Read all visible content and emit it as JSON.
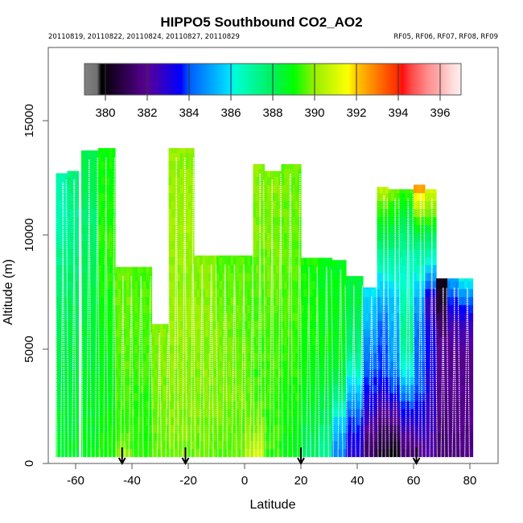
{
  "chart_data": {
    "type": "heatmap",
    "title": "HIPPO5 Southbound CO2_AO2",
    "subtitle_left": "20110819, 20110822, 20110824, 20110827, 20110829",
    "subtitle_right": "RF05, RF06, RF07, RF08, RF09",
    "xlabel": "Latitude",
    "ylabel": "Altitude (m)",
    "xlim": [
      -70,
      90
    ],
    "ylim": [
      0,
      18000
    ],
    "xticks": [
      -60,
      -40,
      -20,
      0,
      20,
      40,
      60,
      80
    ],
    "xtick_labels": [
      "-60",
      "-40",
      "-20",
      "0",
      "20",
      "40",
      "60",
      "80"
    ],
    "yticks": [
      0,
      5000,
      10000,
      15000
    ],
    "ytick_labels": [
      "0",
      "5000",
      "10000",
      "15000"
    ],
    "colorbar": {
      "range": [
        379,
        397
      ],
      "ticks": [
        380,
        382,
        384,
        386,
        388,
        390,
        392,
        394,
        396
      ],
      "tick_labels": [
        "380",
        "382",
        "384",
        "386",
        "388",
        "390",
        "392",
        "394",
        "396"
      ]
    },
    "flight_boundary_arrows_lat": [
      -43.5,
      -21,
      20,
      61
    ],
    "altitude_levels_m": [
      0,
      1000,
      2000,
      3000,
      4000,
      5000,
      6000,
      7000,
      8000,
      9000,
      10000,
      11000,
      12000,
      13000,
      14000
    ],
    "profiles": [
      {
        "lat": [
          -67,
          -63
        ],
        "top_alt": 12700,
        "co2": [
          388.6,
          388.5,
          388.4,
          388.3,
          388.2,
          388.1,
          388.0,
          387.9,
          387.6,
          387.3,
          387.0,
          386.6,
          386.8
        ]
      },
      {
        "lat": [
          -63,
          -59
        ],
        "top_alt": 12800,
        "co2": [
          388.7,
          388.5,
          388.4,
          388.3,
          388.3,
          388.2,
          388.1,
          388.0,
          387.8,
          387.5,
          387.3,
          387.2,
          387.5
        ]
      },
      {
        "lat": [
          -58,
          -52
        ],
        "top_alt": 13700,
        "co2": [
          388.9,
          388.7,
          388.6,
          388.5,
          388.4,
          388.4,
          388.3,
          388.2,
          388.1,
          388.0,
          387.8,
          387.7,
          388.0,
          388.2
        ]
      },
      {
        "lat": [
          -52,
          -46
        ],
        "top_alt": 13800,
        "co2": [
          389.2,
          389.0,
          388.9,
          388.8,
          388.8,
          388.8,
          388.9,
          389.0,
          389.1,
          389.2,
          389.3,
          389.1,
          389.0,
          389.0
        ]
      },
      {
        "lat": [
          -46,
          -40
        ],
        "top_alt": 8600,
        "co2": [
          390.2,
          389.6,
          389.3,
          389.4,
          389.5,
          389.6,
          389.6,
          389.7,
          389.6
        ]
      },
      {
        "lat": [
          -40,
          -33
        ],
        "top_alt": 8600,
        "co2": [
          389.3,
          389.2,
          389.2,
          389.3,
          389.4,
          389.4,
          389.5,
          389.5,
          389.5
        ]
      },
      {
        "lat": [
          -33,
          -27
        ],
        "top_alt": 6100,
        "co2": [
          389.6,
          389.6,
          389.7,
          389.8,
          389.8,
          389.9,
          389.9
        ]
      },
      {
        "lat": [
          -27,
          -18
        ],
        "top_alt": 13800,
        "co2": [
          389.7,
          389.8,
          389.9,
          389.9,
          390.0,
          390.0,
          390.1,
          390.1,
          390.0,
          390.1,
          390.2,
          390.1,
          390.1,
          390.0
        ]
      },
      {
        "lat": [
          -18,
          -10
        ],
        "top_alt": 9100,
        "co2": [
          389.6,
          389.7,
          389.8,
          389.8,
          389.9,
          389.9,
          390.0,
          390.0,
          389.9,
          389.9
        ]
      },
      {
        "lat": [
          -10,
          0
        ],
        "top_alt": 9100,
        "co2": [
          389.5,
          389.6,
          389.7,
          389.8,
          389.8,
          389.8,
          389.7,
          389.7,
          389.6,
          389.5
        ]
      },
      {
        "lat": [
          0,
          3
        ],
        "top_alt": 9100,
        "co2": [
          390.8,
          390.0,
          389.8,
          389.6,
          389.6,
          389.6,
          389.5,
          389.5,
          389.5,
          389.4
        ]
      },
      {
        "lat": [
          3,
          7
        ],
        "top_alt": 13100,
        "co2": [
          391.2,
          390.3,
          389.7,
          389.5,
          389.4,
          389.4,
          389.5,
          389.5,
          389.6,
          389.7,
          389.8,
          389.8,
          389.9,
          389.9
        ]
      },
      {
        "lat": [
          7,
          13
        ],
        "top_alt": 12800,
        "co2": [
          389.3,
          389.3,
          389.3,
          389.3,
          389.4,
          389.5,
          389.5,
          389.6,
          389.7,
          389.7,
          389.8,
          389.8,
          389.9
        ]
      },
      {
        "lat": [
          13,
          20
        ],
        "top_alt": 13100,
        "co2": [
          388.8,
          388.9,
          389.0,
          389.1,
          389.2,
          389.3,
          389.4,
          389.5,
          389.5,
          389.6,
          389.6,
          389.7,
          389.7,
          389.7
        ]
      },
      {
        "lat": [
          20,
          26
        ],
        "top_alt": 9000,
        "co2": [
          387.6,
          388.0,
          388.3,
          388.6,
          388.8,
          389.0,
          389.0,
          389.1,
          389.1,
          389.1
        ]
      },
      {
        "lat": [
          26,
          31
        ],
        "top_alt": 9000,
        "co2": [
          387.0,
          387.4,
          387.9,
          388.3,
          388.6,
          388.8,
          388.9,
          388.8,
          388.7,
          388.7
        ]
      },
      {
        "lat": [
          31,
          36
        ],
        "top_alt": 8900,
        "co2": [
          384.2,
          385.0,
          386.0,
          387.5,
          388.3,
          388.6,
          388.7,
          388.8,
          388.8,
          388.7
        ]
      },
      {
        "lat": [
          36,
          42
        ],
        "top_alt": 8200,
        "co2": [
          383.0,
          383.2,
          384.0,
          385.3,
          386.4,
          387.5,
          387.9,
          388.3,
          388.4
        ]
      },
      {
        "lat": [
          42,
          47
        ],
        "top_alt": 7700,
        "co2": [
          381.0,
          381.5,
          382.6,
          383.5,
          384.0,
          384.6,
          385.3,
          385.7,
          386.0
        ]
      },
      {
        "lat": [
          47,
          51
        ],
        "top_alt": 12100,
        "co2": [
          380.0,
          380.8,
          381.5,
          383.0,
          383.8,
          384.0,
          384.2,
          385.0,
          386.0,
          387.0,
          388.2,
          389.3,
          390.5
        ]
      },
      {
        "lat": [
          51,
          55
        ],
        "top_alt": 12000,
        "co2": [
          379.5,
          380.6,
          382.0,
          383.5,
          384.5,
          385.0,
          385.3,
          385.5,
          386.2,
          387.0,
          388.0,
          389.0,
          390.0
        ]
      },
      {
        "lat": [
          55,
          60
        ],
        "top_alt": 12000,
        "co2": [
          381.0,
          381.8,
          383.0,
          384.6,
          386.0,
          387.0,
          387.2,
          386.8,
          386.3,
          386.8,
          387.6,
          388.5,
          389.5
        ]
      },
      {
        "lat": [
          60,
          64
        ],
        "top_alt": 12200,
        "co2": [
          381.5,
          382.2,
          383.2,
          384.0,
          384.2,
          384.3,
          384.5,
          385.0,
          386.0,
          386.8,
          388.2,
          390.0,
          392.5
        ]
      },
      {
        "lat": [
          64,
          68
        ],
        "top_alt": 12000,
        "co2": [
          381.8,
          382.3,
          382.6,
          383.0,
          383.2,
          383.4,
          383.2,
          382.5,
          384.5,
          386.5,
          388.0,
          389.8,
          391.0
        ]
      },
      {
        "lat": [
          68,
          72
        ],
        "top_alt": 8100,
        "co2": [
          381.4,
          381.5,
          381.6,
          381.8,
          382.0,
          382.0,
          381.5,
          380.5,
          380.2
        ]
      },
      {
        "lat": [
          72,
          76
        ],
        "top_alt": 8100,
        "co2": [
          381.6,
          381.6,
          381.7,
          381.8,
          381.9,
          382.0,
          382.4,
          383.5,
          385.0
        ]
      },
      {
        "lat": [
          76,
          81
        ],
        "top_alt": 8100,
        "co2": [
          381.7,
          381.7,
          381.8,
          381.8,
          381.9,
          382.0,
          382.5,
          384.0,
          386.2
        ]
      }
    ]
  }
}
